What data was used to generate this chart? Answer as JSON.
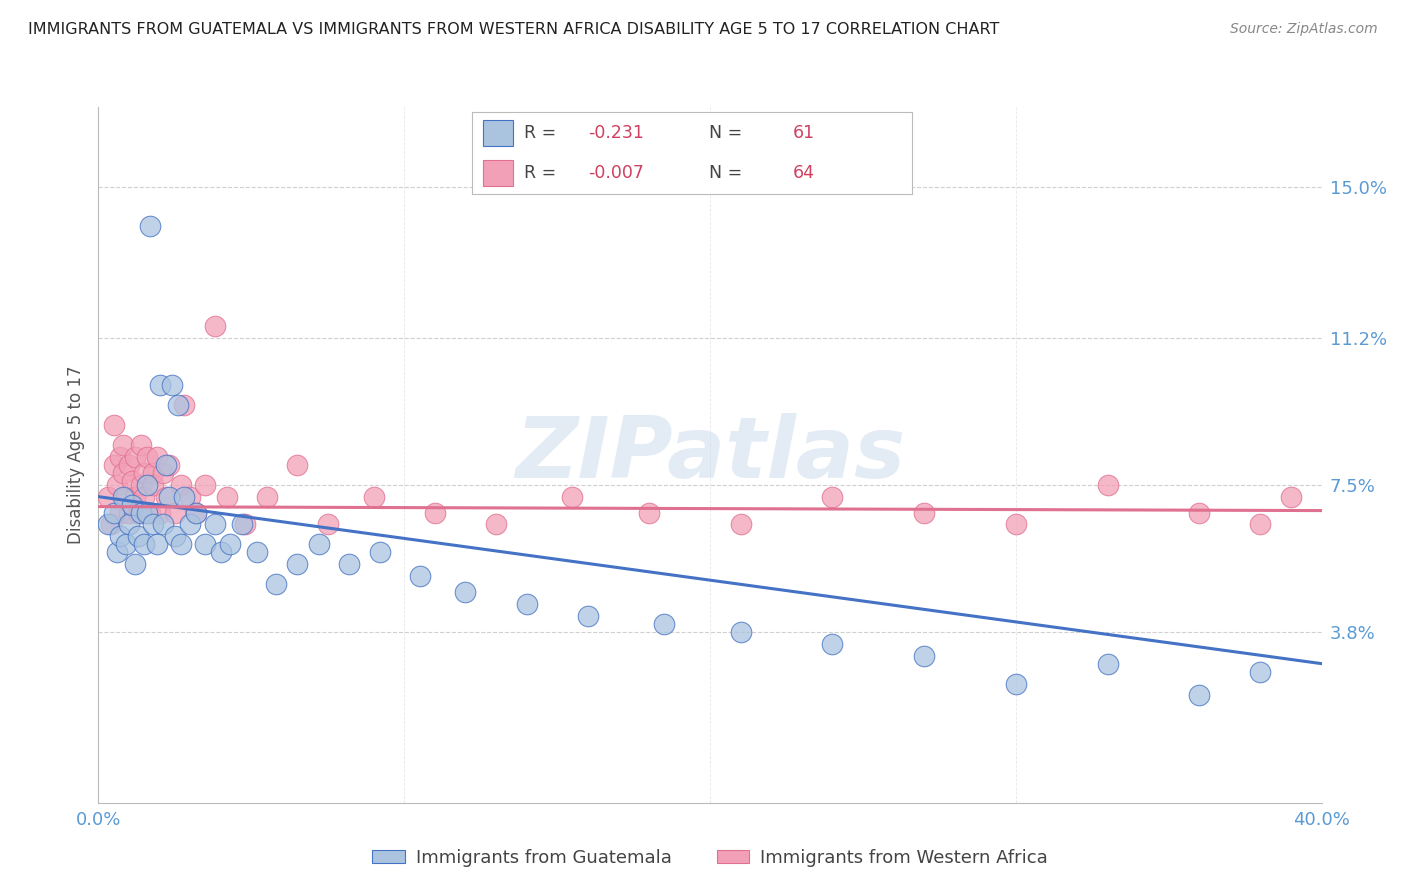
{
  "title": "IMMIGRANTS FROM GUATEMALA VS IMMIGRANTS FROM WESTERN AFRICA DISABILITY AGE 5 TO 17 CORRELATION CHART",
  "source": "Source: ZipAtlas.com",
  "ylabel": "Disability Age 5 to 17",
  "ytick_labels": [
    "15.0%",
    "11.2%",
    "7.5%",
    "3.8%"
  ],
  "ytick_values": [
    0.15,
    0.112,
    0.075,
    0.038
  ],
  "xlim": [
    0.0,
    0.4
  ],
  "ylim": [
    -0.005,
    0.17
  ],
  "color_blue": "#aac4e0",
  "color_pink": "#f2a0b8",
  "line_blue": "#4472c4",
  "line_pink": "#e07090",
  "background_color": "#ffffff",
  "grid_color": "#d0d0d0",
  "tick_label_color": "#5b9bd5",
  "axis_label_color": "#555555",
  "title_fontsize": 11.5,
  "watermark": "ZIPatlas",
  "guatemala_x": [
    0.003,
    0.005,
    0.006,
    0.007,
    0.008,
    0.009,
    0.01,
    0.011,
    0.012,
    0.013,
    0.014,
    0.015,
    0.016,
    0.016,
    0.017,
    0.018,
    0.019,
    0.02,
    0.021,
    0.022,
    0.023,
    0.024,
    0.025,
    0.026,
    0.027,
    0.028,
    0.03,
    0.032,
    0.035,
    0.038,
    0.04,
    0.043,
    0.047,
    0.052,
    0.058,
    0.065,
    0.072,
    0.082,
    0.092,
    0.105,
    0.12,
    0.14,
    0.16,
    0.185,
    0.21,
    0.24,
    0.27,
    0.3,
    0.33,
    0.36,
    0.38
  ],
  "guatemala_y": [
    0.065,
    0.068,
    0.058,
    0.062,
    0.072,
    0.06,
    0.065,
    0.07,
    0.055,
    0.062,
    0.068,
    0.06,
    0.068,
    0.075,
    0.14,
    0.065,
    0.06,
    0.1,
    0.065,
    0.08,
    0.072,
    0.1,
    0.062,
    0.095,
    0.06,
    0.072,
    0.065,
    0.068,
    0.06,
    0.065,
    0.058,
    0.06,
    0.065,
    0.058,
    0.05,
    0.055,
    0.06,
    0.055,
    0.058,
    0.052,
    0.048,
    0.045,
    0.042,
    0.04,
    0.038,
    0.035,
    0.032,
    0.025,
    0.03,
    0.022,
    0.028
  ],
  "western_africa_x": [
    0.003,
    0.004,
    0.005,
    0.005,
    0.006,
    0.007,
    0.007,
    0.008,
    0.008,
    0.009,
    0.01,
    0.01,
    0.011,
    0.012,
    0.012,
    0.013,
    0.014,
    0.014,
    0.015,
    0.015,
    0.016,
    0.017,
    0.018,
    0.018,
    0.019,
    0.02,
    0.021,
    0.022,
    0.023,
    0.025,
    0.027,
    0.028,
    0.03,
    0.032,
    0.035,
    0.038,
    0.042,
    0.048,
    0.055,
    0.065,
    0.075,
    0.09,
    0.11,
    0.13,
    0.155,
    0.18,
    0.21,
    0.24,
    0.27,
    0.3,
    0.33,
    0.36,
    0.38,
    0.39
  ],
  "western_africa_y": [
    0.072,
    0.065,
    0.08,
    0.09,
    0.075,
    0.082,
    0.068,
    0.078,
    0.085,
    0.072,
    0.08,
    0.068,
    0.076,
    0.072,
    0.082,
    0.068,
    0.085,
    0.075,
    0.078,
    0.072,
    0.082,
    0.068,
    0.078,
    0.075,
    0.082,
    0.068,
    0.078,
    0.072,
    0.08,
    0.068,
    0.075,
    0.095,
    0.072,
    0.068,
    0.075,
    0.115,
    0.072,
    0.065,
    0.072,
    0.08,
    0.065,
    0.072,
    0.068,
    0.065,
    0.072,
    0.068,
    0.065,
    0.072,
    0.068,
    0.065,
    0.075,
    0.068,
    0.065,
    0.072
  ],
  "blue_line_x": [
    0.0,
    0.4
  ],
  "blue_line_y": [
    0.072,
    0.03
  ],
  "pink_line_x": [
    0.0,
    0.4
  ],
  "pink_line_y": [
    0.0695,
    0.0685
  ]
}
